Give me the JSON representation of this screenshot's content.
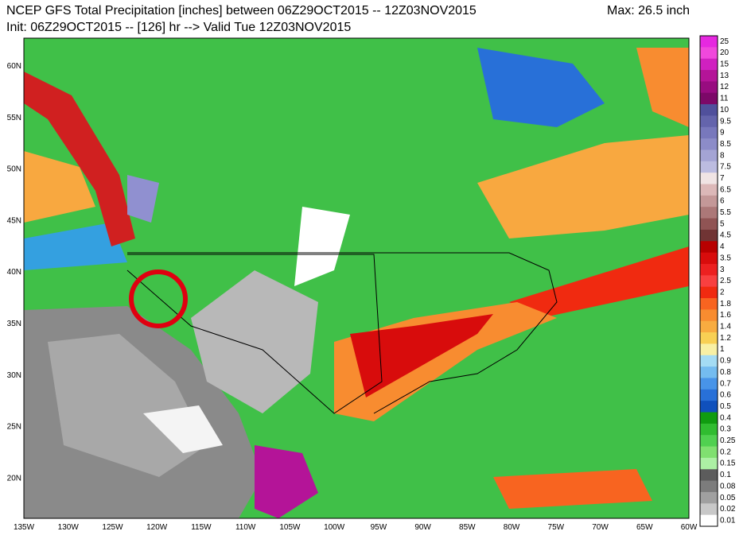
{
  "header": {
    "title_line1": "NCEP GFS Total Precipitation [inches] between 06Z29OCT2015 -- 12Z03NOV2015",
    "title_line2": "Init: 06Z29OCT2015 -- [126] hr --> Valid Tue 12Z03NOV2015",
    "max": "Max: 26.5 inch"
  },
  "latitude_labels": [
    "60N",
    "55N",
    "50N",
    "45N",
    "40N",
    "35N",
    "30N",
    "25N",
    "20N"
  ],
  "longitude_labels": [
    "135W",
    "130W",
    "125W",
    "120W",
    "115W",
    "110W",
    "105W",
    "100W",
    "95W",
    "90W",
    "85W",
    "80W",
    "75W",
    "70W",
    "65W",
    "60W"
  ],
  "legend": [
    {
      "label": "25",
      "color": "#e628e0"
    },
    {
      "label": "20",
      "color": "#f048dc"
    },
    {
      "label": "15",
      "color": "#d020c0"
    },
    {
      "label": "13",
      "color": "#b41498"
    },
    {
      "label": "12",
      "color": "#980c80"
    },
    {
      "label": "11",
      "color": "#7c0868"
    },
    {
      "label": "10",
      "color": "#50509c"
    },
    {
      "label": "9.5",
      "color": "#6464ac"
    },
    {
      "label": "9",
      "color": "#7878bc"
    },
    {
      "label": "8.5",
      "color": "#8c8cc8"
    },
    {
      "label": "8",
      "color": "#a4a4d4"
    },
    {
      "label": "7.5",
      "color": "#bcbce0"
    },
    {
      "label": "7",
      "color": "#f0e4e4"
    },
    {
      "label": "6.5",
      "color": "#dcb8b8"
    },
    {
      "label": "6",
      "color": "#c49898"
    },
    {
      "label": "5.5",
      "color": "#ac7878"
    },
    {
      "label": "5",
      "color": "#905454"
    },
    {
      "label": "4.5",
      "color": "#703434"
    },
    {
      "label": "4",
      "color": "#b80000"
    },
    {
      "label": "3.5",
      "color": "#d80c0c"
    },
    {
      "label": "3",
      "color": "#ec2020"
    },
    {
      "label": "2.5",
      "color": "#f84040"
    },
    {
      "label": "2",
      "color": "#f02a10"
    },
    {
      "label": "1.8",
      "color": "#f86420"
    },
    {
      "label": "1.6",
      "color": "#f88c30"
    },
    {
      "label": "1.4",
      "color": "#f8ac40"
    },
    {
      "label": "1.2",
      "color": "#f8d054"
    },
    {
      "label": "1",
      "color": "#f8f0a4"
    },
    {
      "label": "0.9",
      "color": "#a4dcf4"
    },
    {
      "label": "0.8",
      "color": "#74bcf0"
    },
    {
      "label": "0.7",
      "color": "#4894e8"
    },
    {
      "label": "0.6",
      "color": "#2870d8"
    },
    {
      "label": "0.5",
      "color": "#1050bc"
    },
    {
      "label": "0.4",
      "color": "#109c10"
    },
    {
      "label": "0.3",
      "color": "#30bc30"
    },
    {
      "label": "0.25",
      "color": "#50d050"
    },
    {
      "label": "0.2",
      "color": "#80e070"
    },
    {
      "label": "0.15",
      "color": "#acf0a4"
    },
    {
      "label": "0.1",
      "color": "#5c5c5c"
    },
    {
      "label": "0.08",
      "color": "#7c7c7c"
    },
    {
      "label": "0.05",
      "color": "#a0a0a0"
    },
    {
      "label": "0.02",
      "color": "#c8c8c8"
    },
    {
      "label": "0.01",
      "color": "#ffffff"
    }
  ]
}
